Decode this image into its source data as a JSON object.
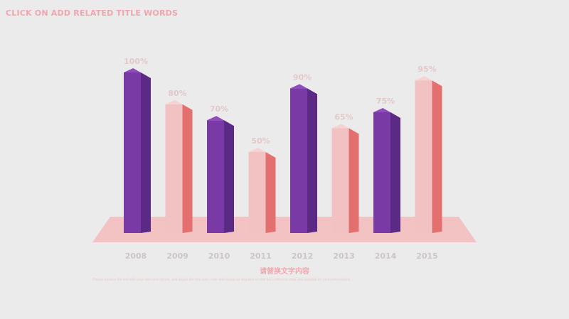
{
  "page": {
    "title": "CLICK ON ADD RELATED TITLE WORDS",
    "subtitle": "请替换文字内容",
    "body_text": "Please replace the text with your own description, and adjust the font size, color and layout as required so that the content is clear and suitable for your presentation."
  },
  "colors": {
    "background": "#ebebeb",
    "title": "#f2a5ad",
    "purple_front": "#7a3aa6",
    "purple_side": "#5b2a84",
    "purple_top": "#8f4cbc",
    "pink_front": "#f2c2c2",
    "pink_side": "#e36f6f",
    "pink_top": "#f7d2d2",
    "floor": "#f3c3c3",
    "value_label": "#e3c9c9",
    "tick_label": "#ccc6c6",
    "subtitle": "#f0a8b0",
    "body_text": "#e6cccc"
  },
  "chart_data": {
    "type": "bar",
    "categories": [
      "2008",
      "2009",
      "2010",
      "2011",
      "2012",
      "2013",
      "2014",
      "2015"
    ],
    "values": [
      100,
      80,
      70,
      50,
      90,
      65,
      75,
      95
    ],
    "value_labels": [
      "100%",
      "80%",
      "70%",
      "50%",
      "90%",
      "65%",
      "75%",
      "95%"
    ],
    "bar_styles": [
      "purple",
      "pink",
      "purple",
      "pink",
      "purple",
      "pink",
      "purple",
      "pink"
    ],
    "unit": "%",
    "ylim": [
      0,
      100
    ],
    "grid": false,
    "legend": "none",
    "style": "3d-columns"
  }
}
